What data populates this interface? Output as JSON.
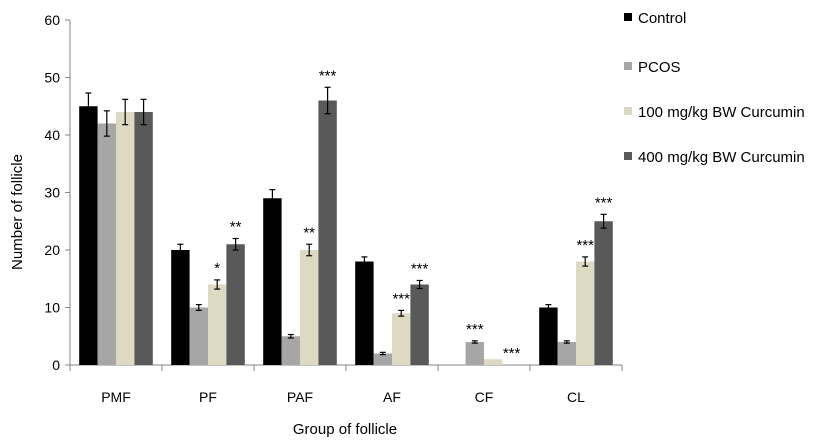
{
  "chart_data": {
    "type": "bar",
    "title": "",
    "xlabel": "Group of follicle",
    "ylabel": "Number of follicle",
    "ylim": [
      0,
      60
    ],
    "yticks": [
      0,
      10,
      20,
      30,
      40,
      50,
      60
    ],
    "grid": false,
    "legend_position": "right",
    "categories": [
      "PMF",
      "PF",
      "PAF",
      "AF",
      "CF",
      "CL"
    ],
    "series": [
      {
        "name": "Control",
        "color": "#000000",
        "values": [
          45,
          20,
          29,
          18,
          0,
          10
        ],
        "errors": [
          2.3,
          1.0,
          1.5,
          0.8,
          0,
          0.5
        ],
        "annotations": [
          "",
          "",
          "",
          "",
          "",
          ""
        ]
      },
      {
        "name": "PCOS",
        "color": "#a6a6a6",
        "values": [
          42,
          10,
          5,
          2,
          4,
          4
        ],
        "errors": [
          2.2,
          0.5,
          0.3,
          0.2,
          0.2,
          0.2
        ],
        "annotations": [
          "",
          "",
          "",
          "",
          "***",
          ""
        ]
      },
      {
        "name": "100 mg/kg BW Curcumin",
        "color": "#ddd9c3",
        "values": [
          44,
          14,
          20,
          9,
          1,
          18
        ],
        "errors": [
          2.2,
          0.8,
          1.0,
          0.5,
          0,
          0.8
        ],
        "annotations": [
          "",
          "*",
          "**",
          "***",
          "",
          "***"
        ]
      },
      {
        "name": "400 mg/kg BW Curcumin",
        "color": "#595959",
        "values": [
          44,
          21,
          46,
          14,
          0,
          25
        ],
        "errors": [
          2.2,
          1.0,
          2.3,
          0.7,
          0,
          1.2
        ],
        "annotations": [
          "",
          "**",
          "***",
          "***",
          "***",
          "***"
        ]
      }
    ]
  }
}
